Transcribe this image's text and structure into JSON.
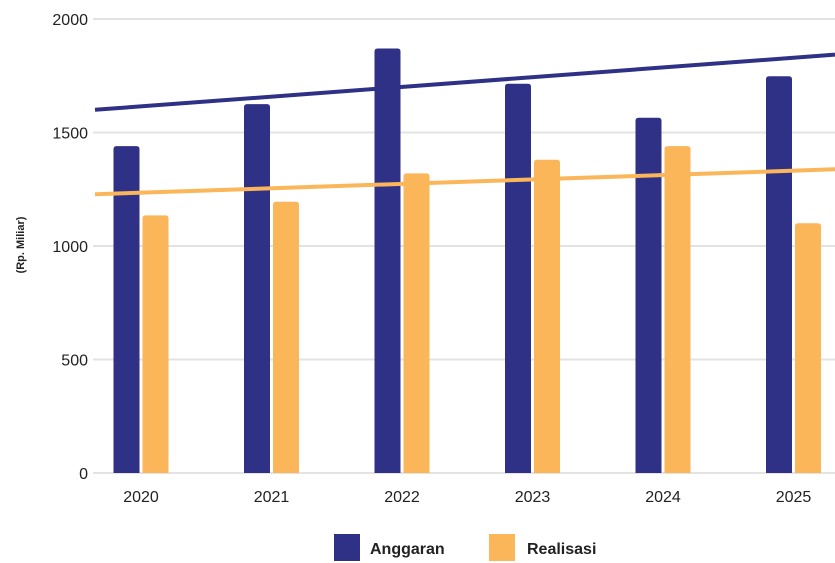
{
  "chart_data": {
    "type": "bar",
    "ylabel": "(Rp. Miliar)",
    "ylim": [
      0,
      2000
    ],
    "yticks": [
      0,
      500,
      1000,
      1500,
      2000
    ],
    "grid": true,
    "legend_position": "bottom",
    "categories": [
      "2020",
      "2021",
      "2022",
      "2023",
      "2024",
      "2025"
    ],
    "series": [
      {
        "name": "Anggaran",
        "color": "#2e3185",
        "values": [
          1440,
          1625,
          1870,
          1715,
          1565,
          1748
        ]
      },
      {
        "name": "Realisasi",
        "color": "#fbb65a",
        "values": [
          1135,
          1195,
          1320,
          1380,
          1440,
          1100
        ]
      }
    ],
    "trendlines": [
      {
        "series": "Anggaran",
        "color": "#2e3185",
        "start": 1600,
        "end": 1843
      },
      {
        "series": "Realisasi",
        "color": "#fbb65a",
        "start": 1228,
        "end": 1338
      }
    ]
  }
}
